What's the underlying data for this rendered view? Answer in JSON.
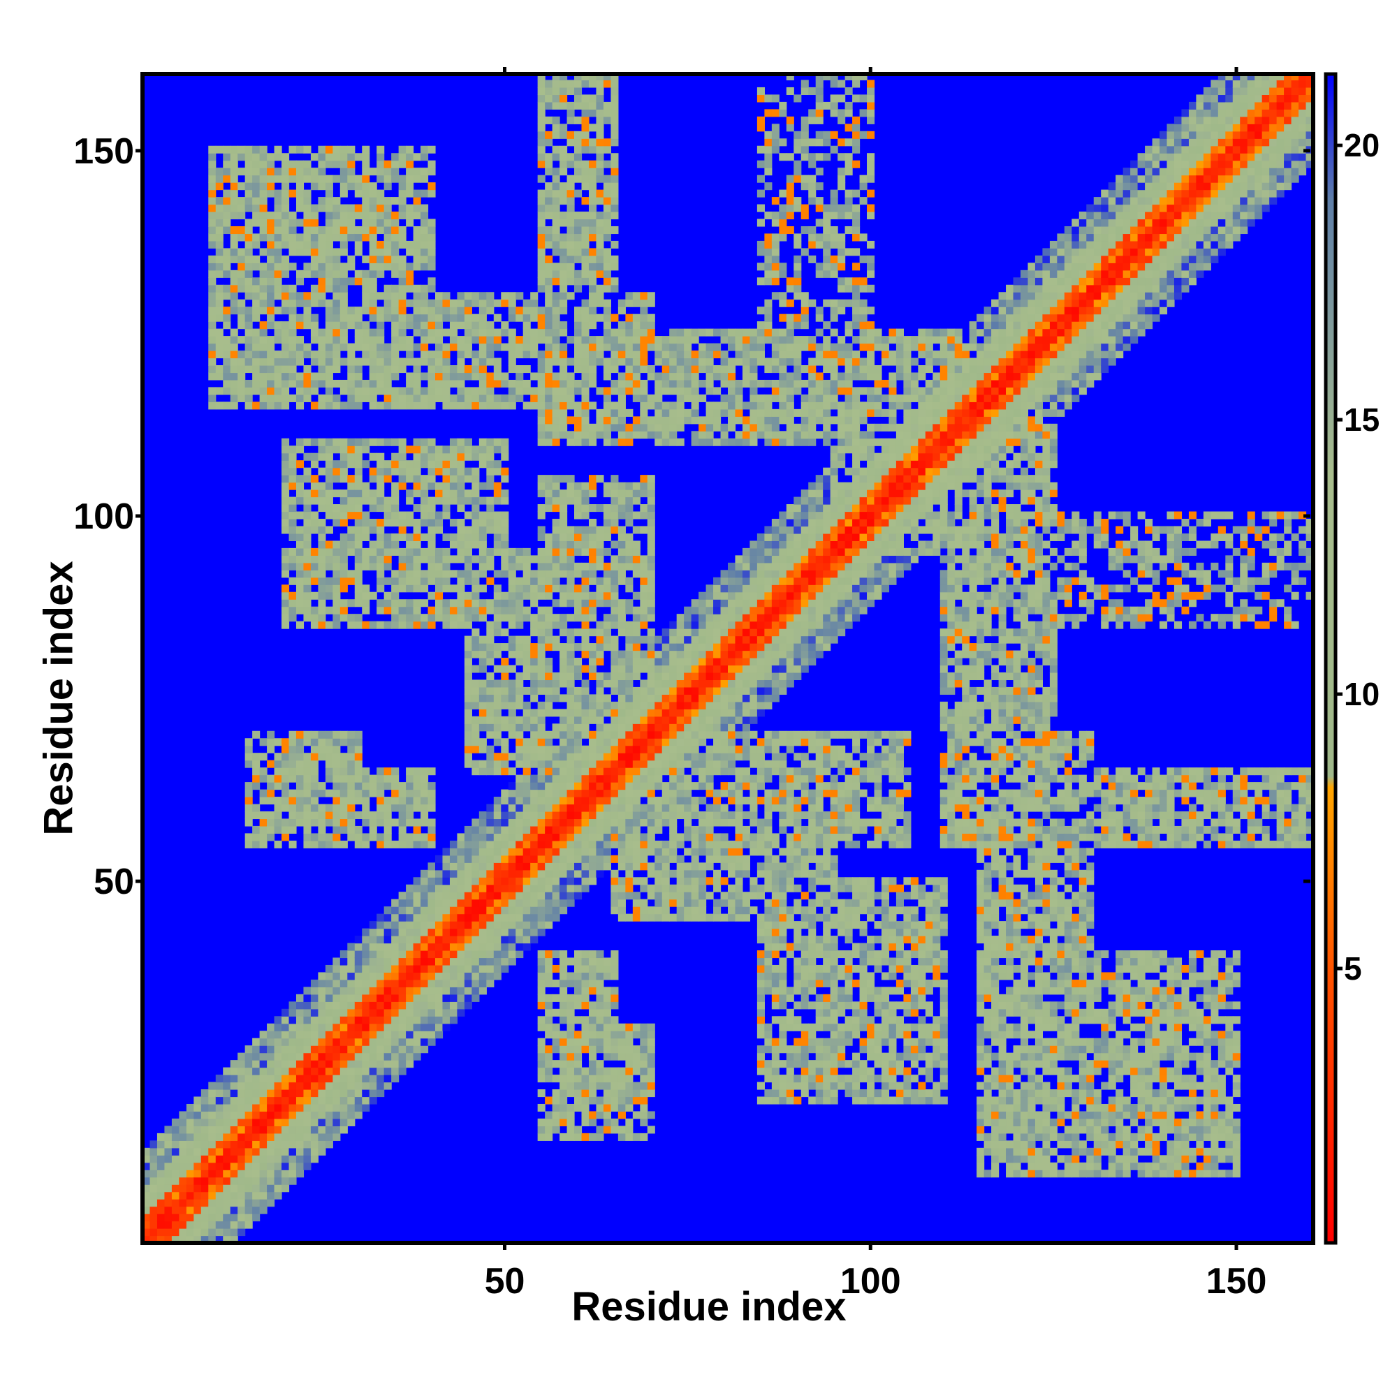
{
  "chart_data": {
    "type": "heatmap",
    "title": "",
    "xlabel": "Residue index",
    "ylabel": "Residue index",
    "xlim": [
      0.5,
      160.5
    ],
    "ylim": [
      0.5,
      160.5
    ],
    "x_ticks": [
      50,
      100,
      150
    ],
    "y_ticks": [
      50,
      100,
      150
    ],
    "colorbar": {
      "range": [
        0,
        21.3
      ],
      "ticks": [
        5,
        10,
        15,
        20
      ],
      "stops": [
        {
          "value": 0,
          "color": "#ff0000"
        },
        {
          "value": 5,
          "color": "#ff5500"
        },
        {
          "value": 8.3,
          "color": "#ffa500"
        },
        {
          "value": 8.5,
          "color": "#9fb88a"
        },
        {
          "value": 14,
          "color": "#a8bd8c"
        },
        {
          "value": 19,
          "color": "#5f7fa8"
        },
        {
          "value": 21.3,
          "color": "#0000ff"
        }
      ]
    },
    "grid": false,
    "legend": "colorbar-right",
    "description_of_values": "Pairwise residue distance map (symmetric, 160 x 160); diagonal near 0, background saturated at max",
    "contact_regions": [
      {
        "x": [
          10,
          40
        ],
        "y": [
          115,
          150
        ],
        "level": "contact"
      },
      {
        "x": [
          55,
          65
        ],
        "y": [
          120,
          155
        ],
        "level": "contact"
      },
      {
        "x": [
          85,
          100
        ],
        "y": [
          130,
          160
        ],
        "level": "sparse"
      },
      {
        "x": [
          20,
          50
        ],
        "y": [
          85,
          110
        ],
        "level": "contact"
      },
      {
        "x": [
          55,
          70
        ],
        "y": [
          90,
          105
        ],
        "level": "contact"
      },
      {
        "x": [
          15,
          30
        ],
        "y": [
          55,
          70
        ],
        "level": "contact"
      },
      {
        "x": [
          65,
          95
        ],
        "y": [
          45,
          70
        ],
        "level": "contact"
      },
      {
        "x": [
          115,
          160
        ],
        "y": [
          55,
          65
        ],
        "level": "contact"
      },
      {
        "x": [
          125,
          155
        ],
        "y": [
          85,
          100
        ],
        "level": "sparse"
      },
      {
        "x": [
          115,
          130
        ],
        "y": [
          35,
          70
        ],
        "level": "contact"
      },
      {
        "x": [
          130,
          150
        ],
        "y": [
          15,
          35
        ],
        "level": "contact"
      },
      {
        "x": [
          55,
          65
        ],
        "y": [
          20,
          40
        ],
        "level": "contact"
      },
      {
        "x": [
          90,
          105
        ],
        "y": [
          20,
          45
        ],
        "level": "contact"
      },
      {
        "x": [
          55,
          110
        ],
        "y": [
          110,
          125
        ],
        "level": "contact"
      },
      {
        "x": [
          100,
          125
        ],
        "y": [
          95,
          115
        ],
        "level": "contact"
      }
    ]
  }
}
